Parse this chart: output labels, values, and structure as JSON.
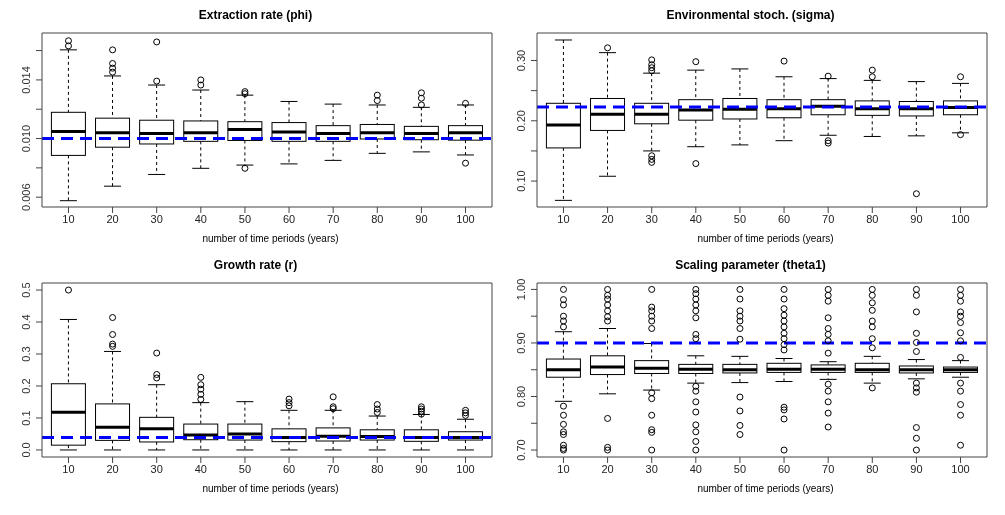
{
  "chart_data": [
    {
      "type": "box",
      "title": "Extraction rate (phi)",
      "xlabel": "number of time periods (years)",
      "categories": [
        "10",
        "20",
        "30",
        "40",
        "50",
        "60",
        "70",
        "80",
        "90",
        "100"
      ],
      "ylim": [
        0.00533,
        0.0172
      ],
      "yticks": [
        0.006,
        {
          "value": 0.008,
          "label": null
        },
        {
          "value": 0.01,
          "label": "0.010"
        },
        {
          "value": 0.012,
          "label": null
        },
        0.014,
        {
          "value": 0.016,
          "label": null
        }
      ],
      "color": "#000000",
      "ref_lines": [
        {
          "axis": "y",
          "value": 0.01,
          "color": "#0000ff",
          "line_style": "dashed"
        }
      ],
      "boxes": [
        {
          "low": 0.00576,
          "q1": 0.00885,
          "median": 0.01048,
          "q3": 0.01179,
          "high": 0.01605,
          "outliers": [
            0.01667,
            0.01632
          ]
        },
        {
          "low": 0.00675,
          "q1": 0.00941,
          "median": 0.0104,
          "q3": 0.01139,
          "high": 0.01427,
          "outliers": [
            0.01605,
            0.01512,
            0.0148,
            0.01453
          ]
        },
        {
          "low": 0.00755,
          "q1": 0.00963,
          "median": 0.01035,
          "q3": 0.01125,
          "high": 0.01365,
          "outliers": [
            0.01659,
            0.01392
          ]
        },
        {
          "low": 0.00797,
          "q1": 0.00981,
          "median": 0.0104,
          "q3": 0.0112,
          "high": 0.01331,
          "outliers": [
            0.014,
            0.01365
          ]
        },
        {
          "low": 0.00819,
          "q1": 0.00987,
          "median": 0.01061,
          "q3": 0.01115,
          "high": 0.01296,
          "outliers": [
            0.0132,
            0.01306,
            0.00797
          ]
        },
        {
          "low": 0.00827,
          "q1": 0.00981,
          "median": 0.01045,
          "q3": 0.01109,
          "high": 0.01253
        },
        {
          "low": 0.00851,
          "q1": 0.00981,
          "median": 0.01035,
          "q3": 0.01088,
          "high": 0.01235
        },
        {
          "low": 0.00899,
          "q1": 0.00997,
          "median": 0.0104,
          "q3": 0.01096,
          "high": 0.01229,
          "outliers": [
            0.01296,
            0.01259
          ]
        },
        {
          "low": 0.00909,
          "q1": 0.00992,
          "median": 0.01035,
          "q3": 0.01083,
          "high": 0.01213,
          "outliers": [
            0.01312,
            0.01275,
            0.01229
          ]
        },
        {
          "low": 0.00888,
          "q1": 0.00989,
          "median": 0.0104,
          "q3": 0.01088,
          "high": 0.01229,
          "outliers": [
            0.0124,
            0.00832
          ]
        }
      ]
    },
    {
      "type": "box",
      "title": "Environmental stoch. (sigma)",
      "xlabel": "number of time periods (years)",
      "categories": [
        "10",
        "20",
        "30",
        "40",
        "50",
        "60",
        "70",
        "80",
        "90",
        "100"
      ],
      "ylim": [
        0.057,
        0.3456
      ],
      "yticks": [
        {
          "value": 0.1,
          "label": "0.10"
        },
        {
          "value": 0.15,
          "label": null
        },
        {
          "value": 0.2,
          "label": "0.20"
        },
        {
          "value": 0.25,
          "label": null
        },
        {
          "value": 0.3,
          "label": "0.30"
        }
      ],
      "color": "#000000",
      "ref_lines": [
        {
          "axis": "y",
          "value": 0.223,
          "color": "#0000ff",
          "line_style": "dashed"
        }
      ],
      "boxes": [
        {
          "low": 0.068,
          "q1": 0.155,
          "median": 0.193,
          "q3": 0.229,
          "high": 0.334
        },
        {
          "low": 0.108,
          "q1": 0.184,
          "median": 0.211,
          "q3": 0.237,
          "high": 0.313,
          "outliers": [
            0.321
          ]
        },
        {
          "low": 0.15,
          "q1": 0.195,
          "median": 0.211,
          "q3": 0.229,
          "high": 0.279,
          "outliers": [
            0.301,
            0.293,
            0.288,
            0.283,
            0.142,
            0.136,
            0.131
          ]
        },
        {
          "low": 0.157,
          "q1": 0.201,
          "median": 0.218,
          "q3": 0.235,
          "high": 0.284,
          "outliers": [
            0.298,
            0.129
          ]
        },
        {
          "low": 0.16,
          "q1": 0.203,
          "median": 0.219,
          "q3": 0.237,
          "high": 0.286
        },
        {
          "low": 0.167,
          "q1": 0.205,
          "median": 0.22,
          "q3": 0.235,
          "high": 0.273,
          "outliers": [
            0.299
          ]
        },
        {
          "low": 0.176,
          "q1": 0.21,
          "median": 0.224,
          "q3": 0.235,
          "high": 0.27,
          "outliers": [
            0.274,
            0.167,
            0.163
          ]
        },
        {
          "low": 0.174,
          "q1": 0.209,
          "median": 0.22,
          "q3": 0.233,
          "high": 0.267,
          "outliers": [
            0.284,
            0.273
          ]
        },
        {
          "low": 0.175,
          "q1": 0.208,
          "median": 0.22,
          "q3": 0.232,
          "high": 0.265,
          "outliers": [
            0.079
          ]
        },
        {
          "low": 0.18,
          "q1": 0.21,
          "median": 0.222,
          "q3": 0.233,
          "high": 0.262,
          "outliers": [
            0.273,
            0.177
          ]
        }
      ]
    },
    {
      "type": "box",
      "title": "Growth rate (r)",
      "xlabel": "number of time periods (years)",
      "categories": [
        "10",
        "20",
        "30",
        "40",
        "50",
        "60",
        "70",
        "80",
        "90",
        "100"
      ],
      "ylim": [
        -0.022,
        0.522
      ],
      "yticks": [
        {
          "value": 0,
          "label": "0.0"
        },
        0.1,
        0.2,
        0.3,
        0.4,
        0.5
      ],
      "color": "#000000",
      "ref_lines": [
        {
          "axis": "y",
          "value": 0.039,
          "color": "#0000ff",
          "line_style": "dashed"
        }
      ],
      "boxes": [
        {
          "low": 0,
          "q1": 0.015,
          "median": 0.118,
          "q3": 0.207,
          "high": 0.408,
          "outliers": [
            0.5
          ]
        },
        {
          "low": 0,
          "q1": 0.03,
          "median": 0.071,
          "q3": 0.144,
          "high": 0.308,
          "outliers": [
            0.414,
            0.361,
            0.331,
            0.324
          ]
        },
        {
          "low": 0,
          "q1": 0.025,
          "median": 0.066,
          "q3": 0.102,
          "high": 0.204,
          "outliers": [
            0.303,
            0.236,
            0.225
          ]
        },
        {
          "low": 0,
          "q1": 0.032,
          "median": 0.047,
          "q3": 0.081,
          "high": 0.148,
          "outliers": [
            0.227,
            0.204,
            0.19,
            0.174,
            0.158
          ]
        },
        {
          "low": 0,
          "q1": 0.031,
          "median": 0.05,
          "q3": 0.081,
          "high": 0.151
        },
        {
          "low": 0,
          "q1": 0.026,
          "median": 0.039,
          "q3": 0.066,
          "high": 0.124,
          "outliers": [
            0.159,
            0.148,
            0.138
          ]
        },
        {
          "low": 0,
          "q1": 0.028,
          "median": 0.043,
          "q3": 0.069,
          "high": 0.124,
          "outliers": [
            0.166,
            0.135,
            0.129
          ]
        },
        {
          "low": 0,
          "q1": 0.031,
          "median": 0.042,
          "q3": 0.063,
          "high": 0.106,
          "outliers": [
            0.142,
            0.128,
            0.117
          ]
        },
        {
          "low": 0,
          "q1": 0.027,
          "median": 0.039,
          "q3": 0.063,
          "high": 0.111,
          "outliers": [
            0.135,
            0.128,
            0.121,
            0.112
          ]
        },
        {
          "low": 0,
          "q1": 0.031,
          "median": 0.039,
          "q3": 0.057,
          "high": 0.096,
          "outliers": [
            0.124,
            0.116,
            0.108
          ]
        }
      ]
    },
    {
      "type": "box",
      "title": "Scaling parameter (theta1)",
      "xlabel": "number of time periods (years)",
      "categories": [
        "10",
        "20",
        "30",
        "40",
        "50",
        "60",
        "70",
        "80",
        "90",
        "100"
      ],
      "ylim": [
        0.687,
        1.012
      ],
      "yticks": [
        {
          "value": 0.7,
          "label": "0.70"
        },
        {
          "value": 0.75,
          "label": null
        },
        {
          "value": 0.8,
          "label": "0.80"
        },
        {
          "value": 0.85,
          "label": null
        },
        {
          "value": 0.9,
          "label": "0.90"
        },
        {
          "value": 0.95,
          "label": null
        },
        {
          "value": 1,
          "label": "1.00"
        }
      ],
      "color": "#000000",
      "ref_lines": [
        {
          "axis": "y",
          "value": 0.9,
          "color": "#0000ff",
          "line_style": "dashed"
        }
      ],
      "boxes": [
        {
          "low": 0.791,
          "q1": 0.836,
          "median": 0.85,
          "q3": 0.87,
          "high": 0.921,
          "outliers": [
            1,
            0.981,
            0.971,
            0.95,
            0.941,
            0.93,
            0.782,
            0.765,
            0.748,
            0.734,
            0.729,
            0.709,
            0.703,
            0.7
          ]
        },
        {
          "low": 0.805,
          "q1": 0.841,
          "median": 0.855,
          "q3": 0.876,
          "high": 0.927,
          "outliers": [
            1,
            0.989,
            0.982,
            0.971,
            0.96,
            0.949,
            0.941,
            0.759,
            0.705,
            0.7
          ]
        },
        {
          "low": 0.812,
          "q1": 0.843,
          "median": 0.853,
          "q3": 0.867,
          "high": 0.899,
          "outliers": [
            1,
            0.967,
            0.96,
            0.95,
            0.941,
            0.927,
            0.807,
            0.796,
            0.765,
            0.738,
            0.733,
            0.7
          ]
        },
        {
          "low": 0.825,
          "q1": 0.843,
          "median": 0.851,
          "q3": 0.86,
          "high": 0.876,
          "outliers": [
            1,
            0.992,
            0.982,
            0.971,
            0.96,
            0.947,
            0.916,
            0.908,
            0.819,
            0.81,
            0.79,
            0.771,
            0.747,
            0.734,
            0.716,
            0.7
          ]
        },
        {
          "low": 0.826,
          "q1": 0.844,
          "median": 0.85,
          "q3": 0.86,
          "high": 0.875,
          "outliers": [
            1,
            0.982,
            0.96,
            0.95,
            0.941,
            0.927,
            0.907,
            0.799,
            0.773,
            0.746,
            0.729
          ]
        },
        {
          "low": 0.828,
          "q1": 0.845,
          "median": 0.851,
          "q3": 0.862,
          "high": 0.871,
          "outliers": [
            1,
            0.982,
            0.964,
            0.952,
            0.941,
            0.93,
            0.918,
            0.908,
            0.897,
            0.887,
            0.78,
            0.775,
            0.758,
            0.7
          ]
        },
        {
          "low": 0.832,
          "q1": 0.845,
          "median": 0.851,
          "q3": 0.859,
          "high": 0.865,
          "outliers": [
            1,
            0.989,
            0.978,
            0.947,
            0.927,
            0.916,
            0.904,
            0.881,
            0.823,
            0.81,
            0.79,
            0.769,
            0.743
          ]
        },
        {
          "low": 0.825,
          "q1": 0.845,
          "median": 0.85,
          "q3": 0.862,
          "high": 0.875,
          "outliers": [
            1,
            0.989,
            0.975,
            0.961,
            0.941,
            0.93,
            0.908,
            0.891,
            0.816
          ]
        },
        {
          "low": 0.833,
          "q1": 0.844,
          "median": 0.85,
          "q3": 0.857,
          "high": 0.869,
          "outliers": [
            1,
            0.989,
            0.958,
            0.918,
            0.901,
            0.884,
            0.825,
            0.816,
            0.808,
            0.742,
            0.722,
            0.7
          ]
        },
        {
          "low": 0.836,
          "q1": 0.845,
          "median": 0.85,
          "q3": 0.855,
          "high": 0.867,
          "outliers": [
            1,
            0.989,
            0.978,
            0.958,
            0.95,
            0.938,
            0.919,
            0.904,
            0.873,
            0.825,
            0.81,
            0.785,
            0.765,
            0.709
          ]
        }
      ]
    }
  ]
}
